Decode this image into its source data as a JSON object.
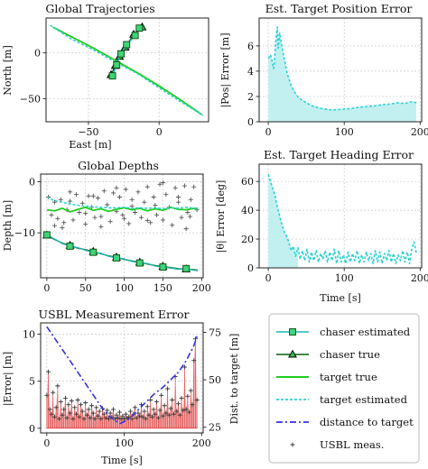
{
  "colors": {
    "chaser_estimated": "#1fb5b5",
    "chaser_true": "#0a5e0a",
    "chaser_true_fill": "#2e8b2e",
    "target_true": "#22cc22",
    "target_estimated": "#2cd3d3",
    "distance": "#3333dd",
    "usbl_meas": "#555555",
    "error_fill": "#f4a6a6",
    "error_line": "#dd3030",
    "pos_fill": "#c2f0f0"
  },
  "legend": {
    "entries": [
      {
        "label": "chaser estimated",
        "style": "chaser_est"
      },
      {
        "label": "chaser true",
        "style": "chaser_true"
      },
      {
        "label": "target true",
        "style": "target_true"
      },
      {
        "label": "target estimated",
        "style": "target_est"
      },
      {
        "label": "distance to target",
        "style": "distance"
      },
      {
        "label": "USBL meas.",
        "style": "usbl"
      }
    ]
  },
  "chart_data": [
    {
      "id": "trajectories",
      "type": "line",
      "title": "Global Trajectories",
      "xlabel": "East [m]",
      "ylabel": "North [m]",
      "xlim": [
        -80,
        35
      ],
      "ylim": [
        -75,
        38
      ],
      "xticks": [
        -50,
        0
      ],
      "yticks": [
        -50,
        0
      ],
      "grid": true,
      "series": [
        {
          "style": "target_true",
          "x": [
            -75,
            -60,
            -45,
            -30,
            -15,
            0,
            15,
            30
          ],
          "y": [
            28,
            16,
            4,
            -9,
            -22,
            -36,
            -51,
            -67
          ]
        },
        {
          "style": "target_est",
          "x": [
            -77,
            -62,
            -46,
            -31,
            -16,
            -1,
            14,
            31
          ],
          "y": [
            30,
            15,
            3,
            -10,
            -22,
            -37,
            -52,
            -68
          ]
        },
        {
          "style": "chaser_true",
          "x": [
            -12,
            -18,
            -24,
            -28,
            -31,
            -34
          ],
          "y": [
            28,
            20,
            6,
            -4,
            -14,
            -24
          ]
        },
        {
          "style": "chaser_est",
          "x": [
            -14,
            -17,
            -23,
            -27,
            -30,
            -33
          ],
          "y": [
            27,
            19,
            9,
            -1,
            -13,
            -25
          ]
        }
      ]
    },
    {
      "id": "pos_error",
      "type": "area",
      "title": "Est. Target Position Error",
      "xlabel": "",
      "ylabel": "|Pos| Error [m]",
      "xlim": [
        -12,
        202
      ],
      "ylim": [
        0,
        8.2
      ],
      "xticks": [
        0,
        100,
        200
      ],
      "yticks": [
        0,
        2,
        4,
        6
      ],
      "grid": true,
      "series": [
        {
          "style": "target_est",
          "x": [
            0,
            3,
            5,
            7,
            8,
            10,
            12,
            13,
            15,
            17,
            20,
            25,
            30,
            35,
            40,
            50,
            60,
            70,
            80,
            90,
            100,
            110,
            120,
            130,
            140,
            150,
            160,
            170,
            180,
            190,
            195
          ],
          "y": [
            5.0,
            5.3,
            4.8,
            4.2,
            4.5,
            6.5,
            7.5,
            5.8,
            7.0,
            6.3,
            5.3,
            3.8,
            2.9,
            2.3,
            1.9,
            1.5,
            1.2,
            1.05,
            0.95,
            0.95,
            1.0,
            1.05,
            1.15,
            1.2,
            1.25,
            1.35,
            1.4,
            1.5,
            1.45,
            1.6,
            1.5
          ]
        }
      ]
    },
    {
      "id": "depths",
      "type": "line",
      "title": "Global Depths",
      "xlabel": "",
      "ylabel": "Depth [m]",
      "xlim": [
        -8,
        202
      ],
      "ylim": [
        -18.8,
        1.5
      ],
      "xticks": [
        0,
        50,
        100,
        150,
        200
      ],
      "yticks": [
        -10,
        0
      ],
      "grid": true,
      "series": [
        {
          "style": "chaser_true",
          "x": [
            0,
            10,
            20,
            30,
            40,
            50,
            60,
            70,
            80,
            90,
            100,
            110,
            120,
            130,
            140,
            150,
            160,
            170,
            180,
            190,
            195
          ],
          "y": [
            -10.5,
            -11.3,
            -12.0,
            -12.5,
            -13.0,
            -13.3,
            -13.7,
            -14.1,
            -14.5,
            -14.8,
            -15.2,
            -15.5,
            -15.8,
            -16.1,
            -16.4,
            -16.6,
            -16.8,
            -17.0,
            -17.1,
            -17.2,
            -17.3
          ]
        },
        {
          "style": "chaser_est",
          "x": [
            0,
            10,
            20,
            30,
            40,
            50,
            60,
            70,
            80,
            90,
            100,
            110,
            120,
            130,
            140,
            150,
            160,
            170,
            180,
            190,
            195
          ],
          "y": [
            -10.4,
            -11.2,
            -12.1,
            -12.6,
            -12.9,
            -13.4,
            -13.8,
            -14.0,
            -14.6,
            -14.9,
            -15.1,
            -15.6,
            -15.9,
            -16.0,
            -16.5,
            -16.7,
            -16.9,
            -17.1,
            -17.0,
            -17.3,
            -17.4
          ]
        },
        {
          "style": "target_true",
          "x": [
            0,
            10,
            20,
            30,
            40,
            50,
            60,
            70,
            80,
            90,
            100,
            110,
            120,
            130,
            140,
            150,
            160,
            170,
            180,
            190,
            195
          ],
          "y": [
            -5.5,
            -5.7,
            -5.2,
            -5.9,
            -5.4,
            -5.0,
            -5.6,
            -5.3,
            -5.8,
            -5.4,
            -5.1,
            -5.5,
            -5.2,
            -5.7,
            -5.3,
            -5.6,
            -5.0,
            -5.4,
            -5.5,
            -5.2,
            -5.4
          ]
        },
        {
          "style": "target_est",
          "x": [
            0,
            5,
            10,
            20,
            30,
            40,
            50,
            60,
            70,
            80,
            90,
            100,
            110,
            120,
            130,
            140,
            150,
            160,
            170,
            180,
            190,
            195
          ],
          "y": [
            -3.0,
            -3.4,
            -3.7,
            -4.0,
            -4.4,
            -4.6,
            -4.8,
            -4.9,
            -5.0,
            -5.1,
            -5.1,
            -5.0,
            -5.2,
            -5.1,
            -5.2,
            -5.1,
            -5.3,
            -5.1,
            -5.2,
            -5.0,
            -5.2,
            -5.1
          ]
        }
      ],
      "scatter": {
        "style": "usbl",
        "x": [
          2,
          6,
          10,
          14,
          18,
          22,
          26,
          30,
          34,
          38,
          42,
          46,
          50,
          54,
          58,
          62,
          66,
          70,
          74,
          78,
          82,
          86,
          90,
          94,
          98,
          102,
          106,
          110,
          114,
          118,
          122,
          126,
          130,
          134,
          138,
          142,
          146,
          150,
          154,
          158,
          162,
          166,
          170,
          174,
          178,
          182,
          186,
          190,
          194,
          10,
          30,
          50,
          70,
          90,
          110,
          130,
          150,
          170,
          185,
          20,
          60,
          100,
          140,
          180
        ],
        "y": [
          -3.0,
          -6.5,
          -4.0,
          -7.2,
          -3.5,
          -8.0,
          -5.5,
          -3.8,
          -7.5,
          -2.5,
          -6.0,
          -4.2,
          -8.3,
          -2.8,
          -5.0,
          -7.0,
          -3.2,
          -6.8,
          -1.8,
          -4.5,
          -7.8,
          -2.2,
          -5.8,
          -3.0,
          -6.5,
          -1.5,
          -8.2,
          -3.5,
          -6.0,
          -2.0,
          -7.0,
          -4.0,
          -1.0,
          -8.0,
          -3.0,
          -6.5,
          -0.5,
          -7.5,
          -2.5,
          -5.0,
          -8.5,
          -1.2,
          -4.0,
          -7.0,
          -0.8,
          -6.0,
          -3.5,
          -1.0,
          -5.5,
          -8.6,
          -2.0,
          -6.2,
          -8.8,
          -1.2,
          -4.8,
          -7.6,
          -0.2,
          -3.0,
          -6.8,
          -9.0,
          -2.8,
          -7.2,
          -4.6,
          -9.2
        ]
      }
    },
    {
      "id": "heading_error",
      "type": "line",
      "title": "Est. Target Heading Error",
      "xlabel": "Time [s]",
      "ylabel": "|θ| Error [deg]",
      "xlim": [
        -12,
        202
      ],
      "ylim": [
        0,
        72
      ],
      "xticks": [
        0,
        100,
        200
      ],
      "yticks": [
        0,
        20,
        40,
        60
      ],
      "grid": true,
      "series": [
        {
          "style": "target_est",
          "x": [
            0,
            3,
            6,
            9,
            12,
            15,
            18,
            21,
            24,
            27,
            30,
            33,
            36,
            39,
            42,
            45,
            48,
            51,
            54,
            57,
            60,
            63,
            66,
            69,
            72,
            75,
            78,
            81,
            84,
            87,
            90,
            93,
            96,
            99,
            102,
            105,
            108,
            111,
            114,
            117,
            120,
            123,
            126,
            129,
            132,
            135,
            138,
            141,
            144,
            147,
            150,
            153,
            156,
            159,
            162,
            165,
            168,
            171,
            174,
            177,
            180,
            183,
            186,
            189,
            192,
            195
          ],
          "y": [
            65,
            60,
            55,
            50,
            42,
            36,
            30,
            25,
            22,
            18,
            12,
            15,
            8,
            14,
            6,
            12,
            5,
            13,
            4,
            11,
            5,
            12,
            4,
            10,
            6,
            12,
            4,
            11,
            5,
            13,
            3,
            12,
            4,
            9,
            3,
            11,
            4,
            10,
            5,
            12,
            3,
            9,
            4,
            11,
            5,
            10,
            3,
            12,
            4,
            11,
            3,
            10,
            5,
            12,
            4,
            10,
            3,
            9,
            5,
            12,
            4,
            11,
            3,
            13,
            18,
            10
          ]
        }
      ]
    },
    {
      "id": "usbl_error",
      "type": "area",
      "title": "USBL Measurement Error",
      "xlabel": "Time [s]",
      "ylabel": "|Error| [m]",
      "y2label": "Dist. to target [m]",
      "xlim": [
        -8,
        202
      ],
      "ylim": [
        -0.5,
        11.2
      ],
      "y2lim": [
        22,
        80
      ],
      "xticks": [
        0,
        100,
        200
      ],
      "yticks": [
        0,
        5,
        10
      ],
      "y2ticks": [
        25,
        50,
        75
      ],
      "grid": true,
      "series": [
        {
          "style": "usbl",
          "x": [
            0,
            2,
            4,
            6,
            8,
            10,
            12,
            14,
            16,
            18,
            20,
            22,
            24,
            26,
            28,
            30,
            32,
            34,
            36,
            38,
            40,
            42,
            44,
            46,
            48,
            50,
            52,
            54,
            56,
            58,
            60,
            62,
            64,
            66,
            68,
            70,
            72,
            74,
            76,
            78,
            80,
            82,
            84,
            86,
            88,
            90,
            92,
            94,
            96,
            98,
            100,
            102,
            104,
            106,
            108,
            110,
            112,
            114,
            116,
            118,
            120,
            122,
            124,
            126,
            128,
            130,
            132,
            134,
            136,
            138,
            140,
            142,
            144,
            146,
            148,
            150,
            152,
            154,
            156,
            158,
            160,
            162,
            164,
            166,
            168,
            170,
            172,
            174,
            176,
            178,
            180,
            182,
            184,
            186,
            188,
            190,
            192,
            194
          ],
          "y": [
            3.5,
            6.0,
            2.0,
            1.5,
            3.8,
            1.2,
            2.2,
            4.5,
            1.0,
            2.8,
            1.4,
            2.0,
            3.2,
            1.1,
            2.5,
            1.6,
            2.9,
            1.0,
            2.2,
            1.5,
            3.0,
            1.2,
            2.5,
            1.8,
            1.0,
            2.7,
            1.4,
            2.0,
            1.1,
            2.4,
            1.6,
            1.0,
            2.2,
            1.3,
            1.8,
            1.0,
            2.1,
            1.5,
            1.1,
            1.9,
            1.0,
            1.6,
            1.2,
            2.0,
            1.0,
            1.4,
            1.1,
            1.7,
            1.0,
            1.3,
            1.0,
            1.5,
            1.1,
            1.2,
            1.8,
            1.0,
            1.5,
            2.2,
            1.1,
            1.6,
            1.3,
            2.5,
            1.2,
            1.8,
            1.0,
            2.3,
            1.4,
            3.0,
            1.2,
            2.0,
            1.5,
            2.8,
            1.1,
            1.9,
            3.5,
            1.3,
            2.4,
            1.6,
            4.2,
            1.4,
            2.1,
            3.0,
            1.5,
            5.5,
            1.8,
            2.6,
            1.4,
            3.2,
            1.9,
            6.5,
            2.0,
            3.4,
            1.7,
            4.0,
            2.5,
            7.2,
            9.5,
            3.0
          ]
        },
        {
          "style": "distance",
          "axis": "y2",
          "x": [
            0,
            10,
            20,
            30,
            40,
            50,
            60,
            70,
            80,
            90,
            95,
            100,
            105,
            110,
            120,
            130,
            140,
            150,
            160,
            170,
            180,
            190,
            195
          ],
          "y": [
            78,
            72,
            66,
            60,
            54,
            48,
            42,
            36,
            31,
            28,
            27,
            28,
            29,
            31,
            35,
            39,
            43,
            46,
            50,
            54,
            60,
            68,
            74
          ]
        }
      ]
    }
  ]
}
